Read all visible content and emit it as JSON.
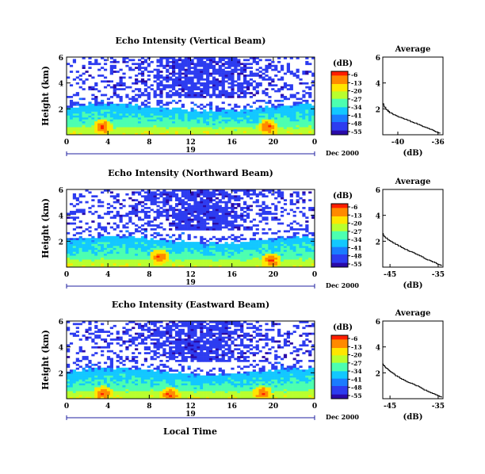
{
  "figure": {
    "xlabel": "Local Time",
    "date_label": "Dec 2000",
    "day_label": "19",
    "colorbar_unit": "(dB)",
    "colorbar_ticks": [
      "-6",
      "-13",
      "-20",
      "-27",
      "-34",
      "-41",
      "-48",
      "-55"
    ],
    "colorbar_colors": [
      "#ff1e00",
      "#ff8a00",
      "#ffe600",
      "#b8ff2e",
      "#4dffb0",
      "#12c8ff",
      "#1a7cff",
      "#2d3cf0",
      "#2a0aa8"
    ]
  },
  "chart_data": [
    {
      "type": "heatmap",
      "title": "Echo Intensity (Vertical Beam)",
      "xlabel": "Local Time",
      "ylabel": "Height (km)",
      "x_ticks": [
        "0",
        "4",
        "8",
        "12",
        "16",
        "20",
        "0"
      ],
      "y_ticks": [
        "2",
        "4",
        "6"
      ],
      "xlim": [
        0,
        24
      ],
      "ylim": [
        0,
        6
      ],
      "clim": [
        -55,
        -6
      ],
      "hot_spots": [
        {
          "x": 3.5,
          "y": 0.6
        },
        {
          "x": 19.5,
          "y": 0.6
        }
      ]
    },
    {
      "type": "line",
      "title": "Average",
      "xlabel": "(dB)",
      "x_ticks": [
        "-40",
        "-36"
      ],
      "y_ticks": [
        "2",
        "4",
        "6"
      ],
      "xlim": [
        -41.5,
        -35.5
      ],
      "ylim": [
        0,
        6
      ],
      "x": [
        -41.5,
        -41.2,
        -40.8,
        -40.0,
        -39.0,
        -38.0,
        -37.2,
        -36.4,
        -35.8
      ],
      "y": [
        2.4,
        2.0,
        1.7,
        1.4,
        1.1,
        0.8,
        0.55,
        0.3,
        0.1
      ]
    },
    {
      "type": "heatmap",
      "title": "Echo Intensity (Northward Beam)",
      "xlabel": "Local Time",
      "ylabel": "Height (km)",
      "x_ticks": [
        "0",
        "4",
        "8",
        "12",
        "16",
        "20",
        "0"
      ],
      "y_ticks": [
        "2",
        "4",
        "6"
      ],
      "xlim": [
        0,
        24
      ],
      "ylim": [
        0,
        6
      ],
      "clim": [
        -55,
        -6
      ],
      "hot_spots": [
        {
          "x": 19.8,
          "y": 0.5
        },
        {
          "x": 9.0,
          "y": 0.8
        }
      ]
    },
    {
      "type": "line",
      "title": "Average",
      "xlabel": "(dB)",
      "x_ticks": [
        "-45",
        "-35"
      ],
      "y_ticks": [
        "2",
        "4",
        "6"
      ],
      "xlim": [
        -46.5,
        -34
      ],
      "ylim": [
        0,
        6
      ],
      "x": [
        -46.5,
        -46.0,
        -45.0,
        -43.5,
        -41.5,
        -39.5,
        -37.5,
        -35.5,
        -34.3
      ],
      "y": [
        2.6,
        2.3,
        2.0,
        1.7,
        1.3,
        1.0,
        0.6,
        0.3,
        0.1
      ]
    },
    {
      "type": "heatmap",
      "title": "Echo Intensity (Eastward Beam)",
      "xlabel": "Local Time",
      "ylabel": "Height (km)",
      "x_ticks": [
        "0",
        "4",
        "8",
        "12",
        "16",
        "20",
        "0"
      ],
      "y_ticks": [
        "2",
        "4",
        "6"
      ],
      "xlim": [
        0,
        24
      ],
      "ylim": [
        0,
        6
      ],
      "clim": [
        -55,
        -6
      ],
      "hot_spots": [
        {
          "x": 3.5,
          "y": 0.4
        },
        {
          "x": 10.0,
          "y": 0.3
        },
        {
          "x": 19.0,
          "y": 0.4
        }
      ]
    },
    {
      "type": "line",
      "title": "Average",
      "xlabel": "(dB)",
      "x_ticks": [
        "-45",
        "-35"
      ],
      "y_ticks": [
        "2",
        "4",
        "6"
      ],
      "xlim": [
        -46.5,
        -34
      ],
      "ylim": [
        0,
        6
      ],
      "x": [
        -46.5,
        -46.0,
        -45.0,
        -43.5,
        -41.5,
        -39.5,
        -37.5,
        -35.5,
        -34.3
      ],
      "y": [
        2.7,
        2.4,
        2.1,
        1.7,
        1.3,
        1.0,
        0.6,
        0.3,
        0.1
      ]
    }
  ]
}
